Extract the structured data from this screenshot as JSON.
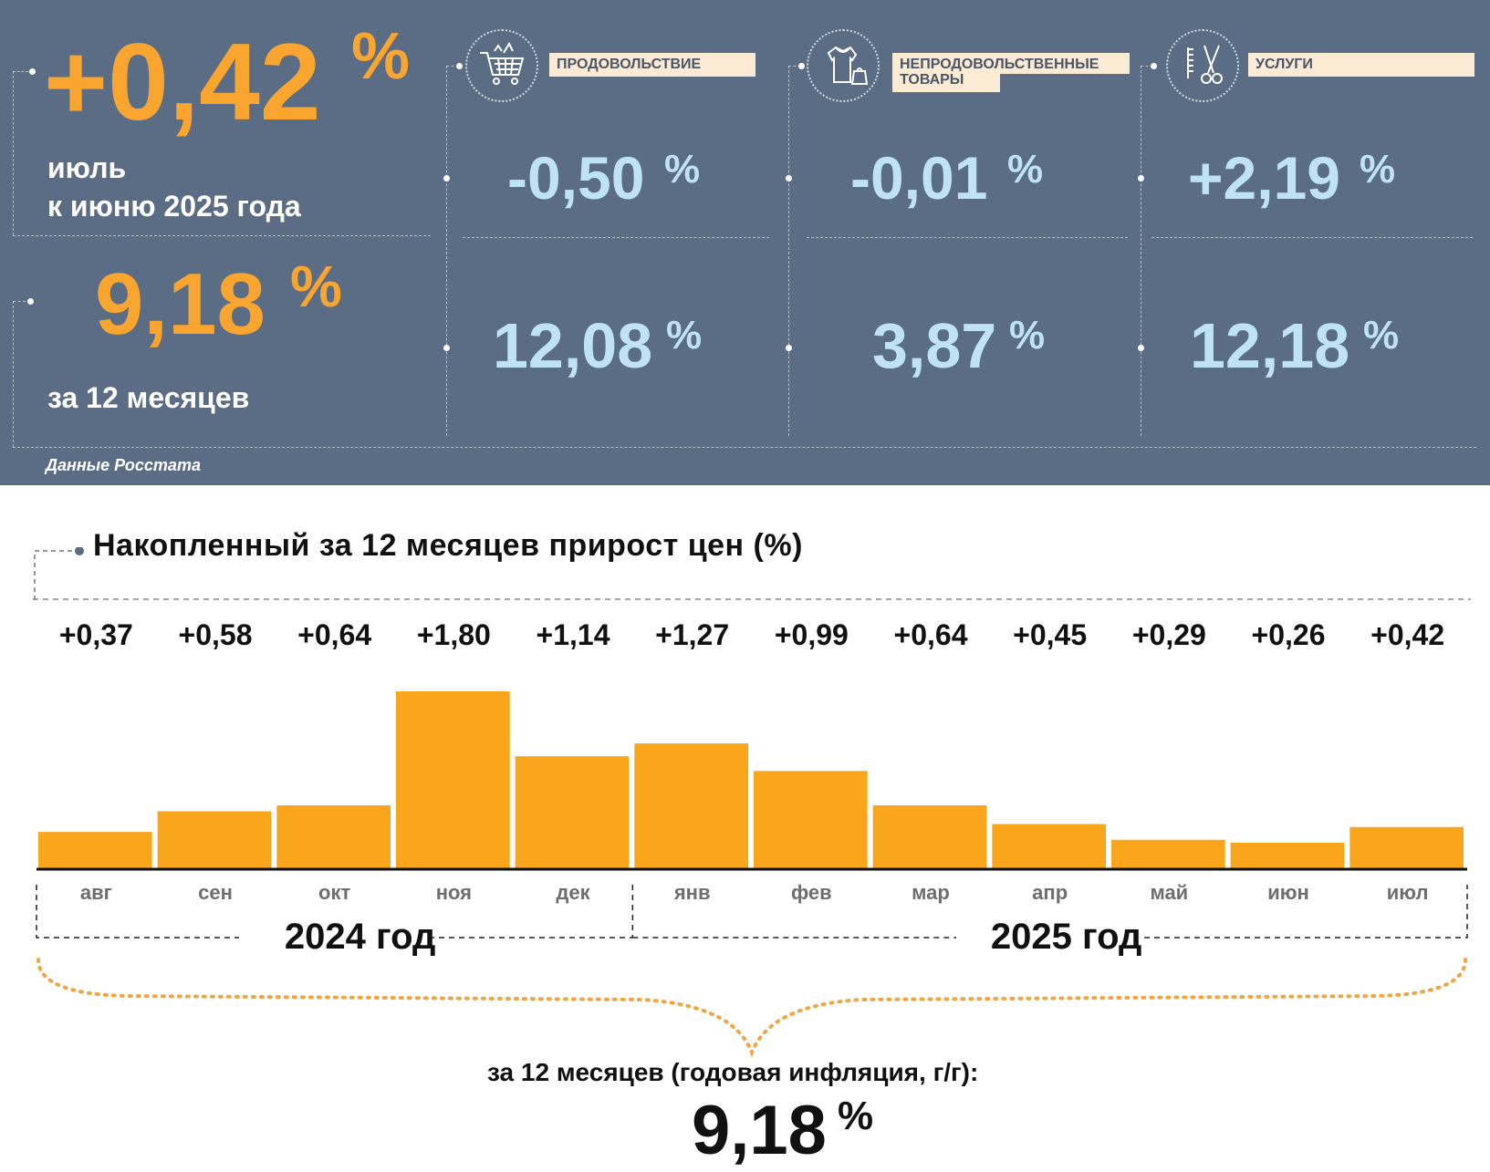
{
  "summary": {
    "monthly": {
      "value": "+0,42",
      "unit": "%",
      "label_line1": "июль",
      "label_line2": "к июню 2025 года"
    },
    "annual": {
      "value": "9,18",
      "unit": "%",
      "label": "за 12 месяцев"
    },
    "source": "Данные Росстата"
  },
  "categories": [
    {
      "icon": "shopping-cart-icon",
      "label": "ПРОДОВОЛЬСТВИЕ",
      "monthly": "-0,50",
      "annual": "12,08",
      "unit": "%"
    },
    {
      "icon": "clothing-icon",
      "label_line1": "НЕПРОДОВОЛЬСТВЕННЫЕ",
      "label_line2": "ТОВАРЫ",
      "monthly": "-0,01",
      "annual": "3,87",
      "unit": "%"
    },
    {
      "icon": "scissors-comb-icon",
      "label": "УСЛУГИ",
      "monthly": "+2,19",
      "annual": "12,18",
      "unit": "%"
    }
  ],
  "chart_data": {
    "type": "bar",
    "title": "Накопленный за 12 месяцев прирост цен (%)",
    "categories": [
      "авг",
      "сен",
      "окт",
      "ноя",
      "дек",
      "янв",
      "фев",
      "мар",
      "апр",
      "май",
      "июн",
      "июл"
    ],
    "values": [
      0.37,
      0.58,
      0.64,
      1.8,
      1.14,
      1.27,
      0.99,
      0.64,
      0.45,
      0.29,
      0.26,
      0.42
    ],
    "value_labels": [
      "+0,37",
      "+0,58",
      "+0,64",
      "+1,80",
      "+1,14",
      "+1,27",
      "+0,99",
      "+0,64",
      "+0,45",
      "+0,29",
      "+0,26",
      "+0,42"
    ],
    "year_groups": [
      "2024 год",
      "2025 год"
    ],
    "ylim": [
      0,
      1.8
    ],
    "bar_color": "#faa61c",
    "total_caption": "за 12 месяцев (годовая инфляция, г/г):",
    "total_value": "9,18",
    "total_unit": "%"
  }
}
